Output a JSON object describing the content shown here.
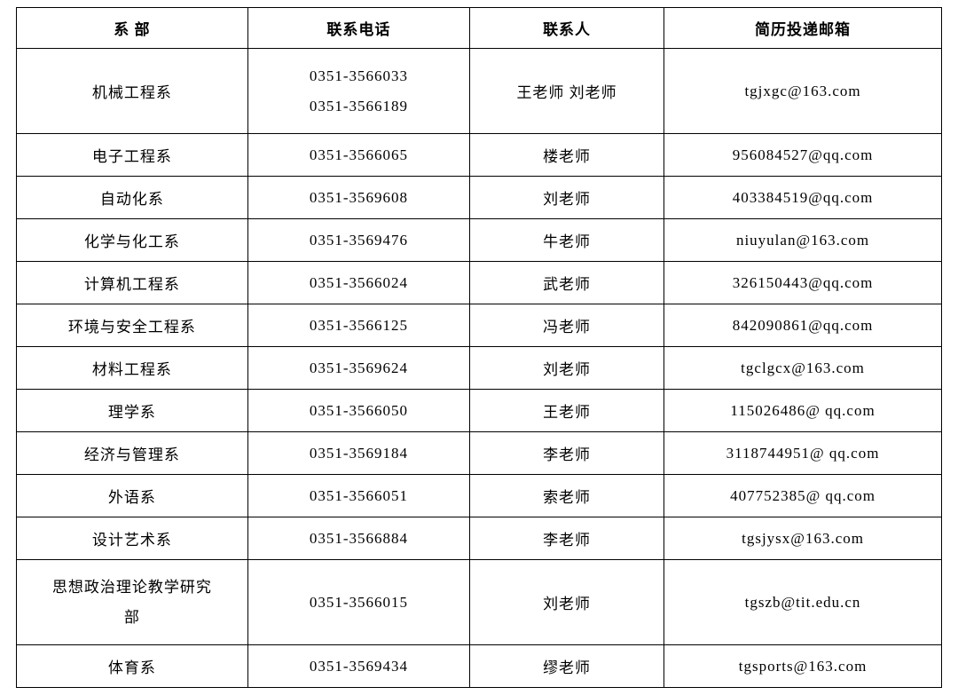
{
  "table": {
    "columns": [
      "系 部",
      "联系电话",
      "联系人",
      "简历投递邮箱"
    ],
    "column_widths": [
      "25%",
      "24%",
      "21%",
      "30%"
    ],
    "border_color": "#000000",
    "background_color": "#ffffff",
    "text_color": "#000000",
    "font_family": "SimSun",
    "header_fontsize": 17,
    "cell_fontsize": 17,
    "rows": [
      {
        "dept": "机械工程系",
        "phone": "0351-3566033\n0351-3566189",
        "contact": "王老师 刘老师",
        "email": "tgjxgc@163.com",
        "tall": true
      },
      {
        "dept": "电子工程系",
        "phone": "0351-3566065",
        "contact": "楼老师",
        "email": "956084527@qq.com"
      },
      {
        "dept": "自动化系",
        "phone": "0351-3569608",
        "contact": "刘老师",
        "email": "403384519@qq.com"
      },
      {
        "dept": "化学与化工系",
        "phone": "0351-3569476",
        "contact": "牛老师",
        "email": "niuyulan@163.com"
      },
      {
        "dept": "计算机工程系",
        "phone": "0351-3566024",
        "contact": "武老师",
        "email": "326150443@qq.com"
      },
      {
        "dept": "环境与安全工程系",
        "phone": "0351-3566125",
        "contact": "冯老师",
        "email": "842090861@qq.com"
      },
      {
        "dept": "材料工程系",
        "phone": "0351-3569624",
        "contact": "刘老师",
        "email": "tgclgcx@163.com"
      },
      {
        "dept": "理学系",
        "phone": "0351-3566050",
        "contact": "王老师",
        "email": "115026486@  qq.com"
      },
      {
        "dept": "经济与管理系",
        "phone": "0351-3569184",
        "contact": "李老师",
        "email": "3118744951@  qq.com"
      },
      {
        "dept": "外语系",
        "phone": "0351-3566051",
        "contact": "索老师",
        "email": "407752385@  qq.com"
      },
      {
        "dept": "设计艺术系",
        "phone": "0351-3566884",
        "contact": "李老师",
        "email": "tgsjysx@163.com"
      },
      {
        "dept": "思想政治理论教学研究部",
        "phone": "0351-3566015",
        "contact": "刘老师",
        "email": "tgszb@tit.edu.cn",
        "tall": true,
        "dept_wrap": true
      },
      {
        "dept": "体育系",
        "phone": "0351-3569434",
        "contact": "缪老师",
        "email": "tgsports@163.com"
      }
    ]
  }
}
